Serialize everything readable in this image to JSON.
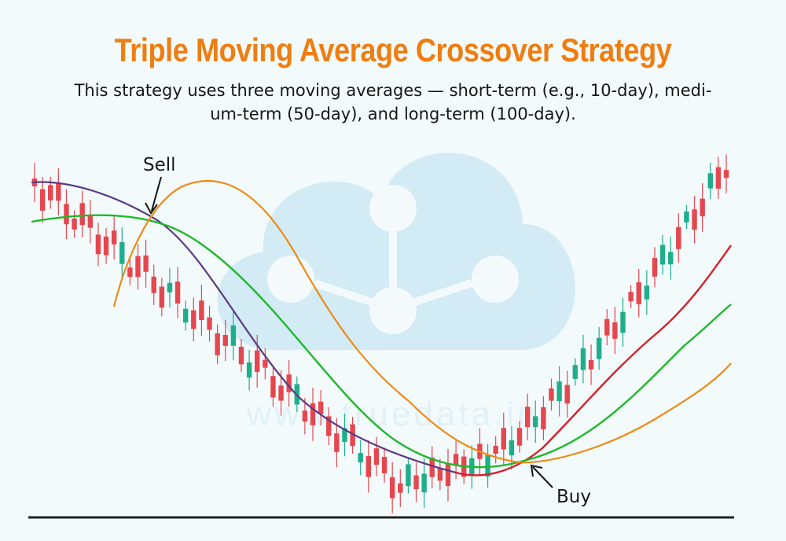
{
  "title": "Triple Moving Average Crossover Strategy",
  "subtitle_line1": "This strategy uses three moving averages — short-term (e.g., 10-day), medi-",
  "subtitle_line2": "um-term (50-day), and long-term (100-day).",
  "watermark_text": "www.truedata.in",
  "colors": {
    "title": "#ef7d10",
    "bull_candle": "#1fae8a",
    "bear_candle": "#e5474f",
    "short_ma": "#ef8a12",
    "medium_ma": "#1fb82b",
    "long_ma_before": "#5b3a82",
    "long_ma_after": "#d6202a",
    "axis": "#222222"
  },
  "chart_data": {
    "type": "line",
    "title": "Triple Moving Average Crossover Strategy",
    "xlabel": "",
    "ylabel": "",
    "axis_ticks": "none",
    "grid": false,
    "series": [
      {
        "role": "short-term moving average",
        "color": "#ef8a12"
      },
      {
        "role": "medium-term moving average",
        "color": "#1fb82b"
      },
      {
        "role": "long-term moving average",
        "color": "#5b3a82"
      }
    ],
    "annotations": [
      {
        "label": "Sell",
        "event": "short-term average crosses medium and long averages"
      },
      {
        "label": "Buy",
        "event": "short-term average crosses back above"
      }
    ],
    "candles": {
      "count": 88,
      "overall_trend": [
        "decline",
        "bottom",
        "strong rise"
      ]
    }
  }
}
